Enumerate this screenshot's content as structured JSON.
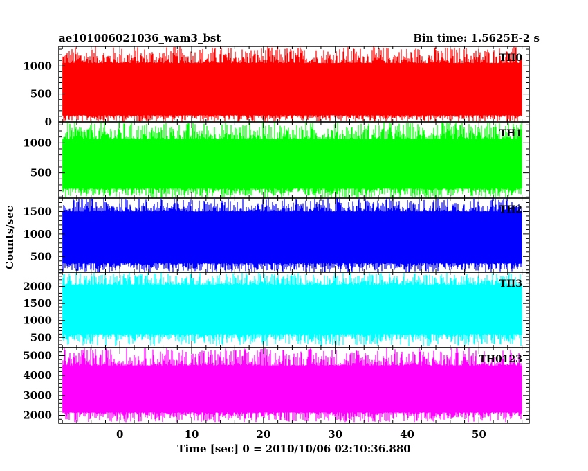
{
  "chart_data": {
    "type": "line",
    "title": "ae101006021036_wam3_bst",
    "subtitle": "Bin time: 1.5625E-2 s",
    "xlabel": "Time [sec] 0 = 2010/10/06 02:10:36.880",
    "ylabel": "Counts/sec",
    "xlim": [
      -8.5,
      57
    ],
    "xticks": [
      0,
      10,
      20,
      30,
      40,
      50
    ],
    "grid": false,
    "legend": "panel labels at top-right",
    "data_x_range": [
      -8.0,
      56.0
    ],
    "series": [
      {
        "name": "TH0",
        "color": "#ff0000",
        "ylim": [
          0,
          1350
        ],
        "yticks": [
          0,
          500,
          1000
        ],
        "typical_low": 120,
        "typical_high": 1050,
        "min": 0,
        "max": 1350
      },
      {
        "name": "TH1",
        "color": "#00ff00",
        "ylim": [
          80,
          1350
        ],
        "yticks": [
          500,
          1000
        ],
        "typical_low": 240,
        "typical_high": 1060,
        "min": 80,
        "max": 1350
      },
      {
        "name": "TH2",
        "color": "#0000ff",
        "ylim": [
          150,
          1800
        ],
        "yticks": [
          500,
          1000,
          1500
        ],
        "typical_low": 350,
        "typical_high": 1500,
        "min": 150,
        "max": 1800
      },
      {
        "name": "TH3",
        "color": "#00ffff",
        "ylim": [
          200,
          2420
        ],
        "yticks": [
          500,
          1000,
          1500,
          2000
        ],
        "typical_low": 600,
        "typical_high": 2050,
        "min": 250,
        "max": 2420
      },
      {
        "name": "TH0123",
        "color": "#ff00ff",
        "ylim": [
          1600,
          5400
        ],
        "yticks": [
          2000,
          3000,
          4000,
          5000
        ],
        "typical_low": 2150,
        "typical_high": 4500,
        "min": 1650,
        "max": 5400
      }
    ]
  }
}
